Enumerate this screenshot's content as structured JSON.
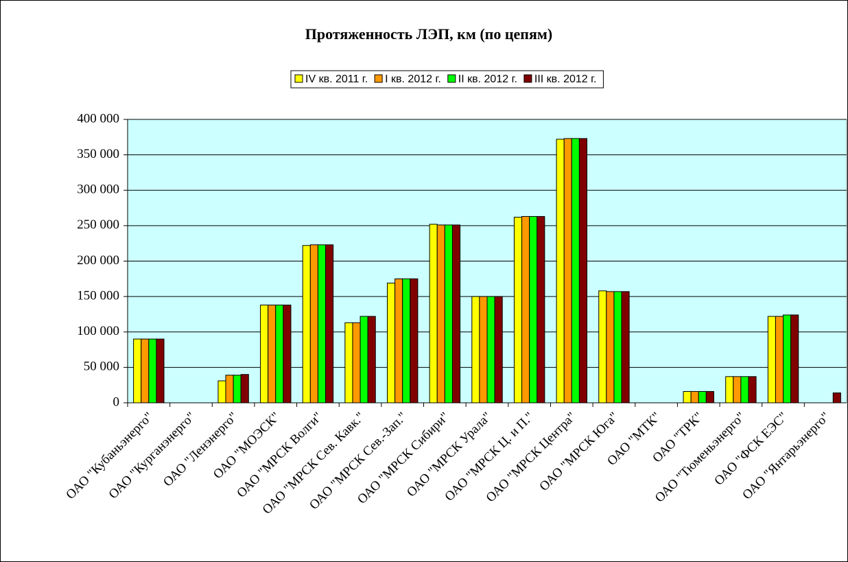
{
  "chart_data": {
    "type": "bar",
    "title": "Протяженность ЛЭП, км (по цепям)",
    "categories": [
      "ОАО \"Кубаньэнерго\"",
      "ОАО \"Курганэнерго\"",
      "ОАО \"Ленэнерго\"",
      "ОАО \"МОЭСК\"",
      "ОАО \"МРСК Волги\"",
      "ОАО \"МРСК Сев. Кавк.\"",
      "ОАО \"МРСК Сев.-Зап.\"",
      "ОАО \"МРСК Сибири\"",
      "ОАО \"МРСК Урала\"",
      "ОАО \"МРСК Ц. и П.\"",
      "ОАО \"МРСК Центра\"",
      "ОАО \"МРСК Юга\"",
      "ОАО \"МТК\"",
      "ОАО \"ТРК\"",
      "ОАО \"Тюменьэнерго\"",
      "ОАО \"ФСК ЕЭС\"",
      "ОАО \"Янтарьэнерго\""
    ],
    "series": [
      {
        "name": "IV кв. 2011 г.",
        "color": "#ffff00",
        "values": [
          90000,
          null,
          31000,
          138000,
          222000,
          113000,
          169000,
          252000,
          150000,
          262000,
          372000,
          158000,
          null,
          16000,
          37000,
          122000,
          null
        ]
      },
      {
        "name": "I кв. 2012 г.",
        "color": "#ff9900",
        "values": [
          90000,
          null,
          39000,
          138000,
          223000,
          113000,
          175000,
          251000,
          150000,
          263000,
          373000,
          157000,
          null,
          16000,
          37000,
          122000,
          null
        ]
      },
      {
        "name": "II кв. 2012 г.",
        "color": "#00ff00",
        "values": [
          90000,
          null,
          39000,
          138000,
          223000,
          122000,
          175000,
          251000,
          150000,
          263000,
          373000,
          157000,
          null,
          16000,
          37000,
          124000,
          null
        ]
      },
      {
        "name": "III кв. 2012 г.",
        "color": "#800000",
        "values": [
          90000,
          null,
          40000,
          138000,
          223000,
          122000,
          175000,
          251000,
          150000,
          263000,
          373000,
          157000,
          null,
          16000,
          37000,
          124000,
          14000
        ]
      }
    ],
    "ylim": [
      0,
      400000
    ],
    "yticks": [
      {
        "value": 0,
        "label": "0"
      },
      {
        "value": 50000,
        "label": "50 000"
      },
      {
        "value": 100000,
        "label": "100 000"
      },
      {
        "value": 150000,
        "label": "150 000"
      },
      {
        "value": 200000,
        "label": "200 000"
      },
      {
        "value": 250000,
        "label": "250 000"
      },
      {
        "value": 300000,
        "label": "300 000"
      },
      {
        "value": 350000,
        "label": "350 000"
      },
      {
        "value": 400000,
        "label": "400 000"
      }
    ],
    "grid": true,
    "legend": "top",
    "plot_background": "#ccffff"
  }
}
